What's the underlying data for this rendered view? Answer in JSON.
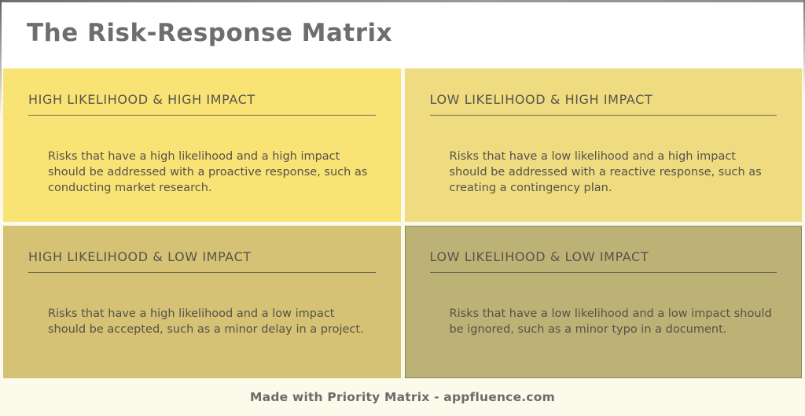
{
  "title": "The Risk-Response Matrix",
  "quadrants": [
    {
      "heading": "HIGH LIKELIHOOD & HIGH IMPACT",
      "body": "Risks that have a high likelihood and a high impact should be addressed with a proactive response, such as conducting market research.",
      "bg_color": "#FAE375"
    },
    {
      "heading": "LOW LIKELIHOOD & HIGH IMPACT",
      "body": "Risks that have a low likelihood and a high impact should be addressed with a reactive response, such as creating a contingency plan.",
      "bg_color": "#EFDC81"
    },
    {
      "heading": "HIGH LIKELIHOOD & LOW IMPACT",
      "body": "Risks that have a high likelihood and a low impact should be accepted, such as a minor delay in a project.",
      "bg_color": "#D5C275"
    },
    {
      "heading": "LOW LIKELIHOOD & LOW IMPACT",
      "body": "Risks that have a low likelihood and a low impact should be ignored, such as a minor typo in a document.",
      "bg_color": "#BDB276"
    }
  ],
  "footer": {
    "text": "Made with Priority Matrix - appfluence.com"
  },
  "colors": {
    "header_bg": "#FFFFFF",
    "page_bg": "#FBFAEC",
    "footer_bg": "#FCFBEB",
    "title_text": "#6E6E6E",
    "quadrant_heading_text": "#57544B",
    "quadrant_body_text": "#55524A",
    "heading_rule": "#6B6856",
    "footer_text": "#6B6B6B",
    "frame_border": "#7A7A7A"
  }
}
